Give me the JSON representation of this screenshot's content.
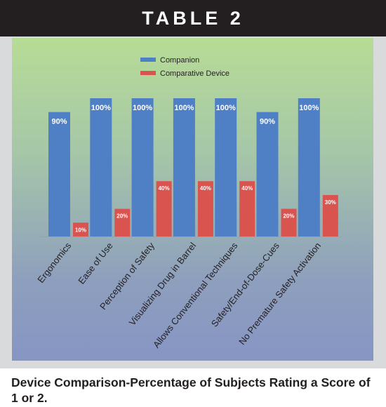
{
  "header": {
    "title": "TABLE 2"
  },
  "caption": "Device Comparison-Percentage of Subjects Rating a Score of 1 or 2.",
  "colors": {
    "companion": "#4f7fc4",
    "comparative": "#d9534f",
    "header_bg": "#231f20"
  },
  "chart_data": {
    "type": "bar",
    "title": "TABLE 2",
    "categories": [
      "Ergonomics",
      "Ease of Use",
      "Perception of Safety",
      "Visualizing Drug in Barrel",
      "Allows Conventional Techniques",
      "Safety/End-of-Dose-Cues",
      "No Premature Safety Activation"
    ],
    "series": [
      {
        "name": "Companion",
        "values": [
          90,
          100,
          100,
          100,
          100,
          90,
          100
        ],
        "labels": [
          "90%",
          "100%",
          "100%",
          "100%",
          "100%",
          "90%",
          "100%"
        ]
      },
      {
        "name": "Comparative Device",
        "values": [
          10,
          20,
          40,
          40,
          40,
          20,
          30
        ],
        "labels": [
          "10%",
          "20%",
          "40%",
          "40%",
          "40%",
          "20%",
          "30%"
        ]
      }
    ],
    "ylim": [
      0,
      100
    ],
    "legend": "top-center",
    "grid": false
  }
}
